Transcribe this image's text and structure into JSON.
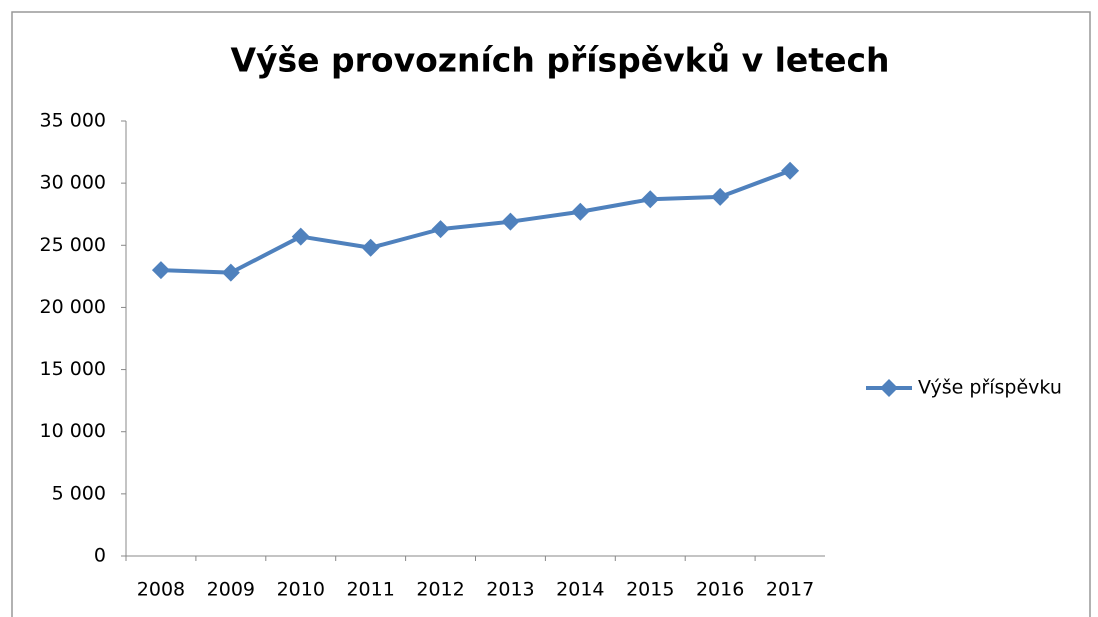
{
  "chart_data": {
    "type": "line",
    "title": "Výše provozních příspěvků v letech",
    "categories": [
      "2008",
      "2009",
      "2010",
      "2011",
      "2012",
      "2013",
      "2014",
      "2015",
      "2016",
      "2017"
    ],
    "series": [
      {
        "name": "Výše příspěvku",
        "color": "#4f81bd",
        "values": [
          23000,
          22800,
          25700,
          24800,
          26300,
          26900,
          27700,
          28700,
          28900,
          31000
        ]
      }
    ],
    "ylim": [
      0,
      35000
    ],
    "yticks": [
      0,
      {
        "value": 5000,
        "label": "5 000"
      },
      {
        "value": 10000,
        "label": "10 000"
      },
      {
        "value": 15000,
        "label": "15 000"
      },
      {
        "value": 20000,
        "label": "20 000"
      },
      {
        "value": 25000,
        "label": "25 000"
      },
      {
        "value": 30000,
        "label": "30 000"
      },
      {
        "value": 35000,
        "label": "35 000"
      }
    ],
    "grid": false,
    "legend": "right"
  }
}
